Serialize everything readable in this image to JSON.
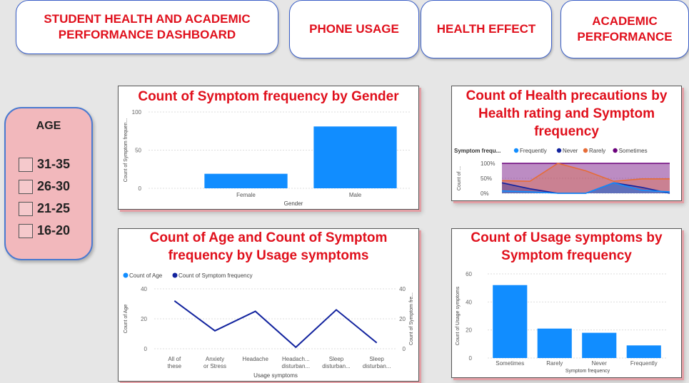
{
  "nav": {
    "title": "STUDENT HEALTH AND ACADEMIC PERFORMANCE DASHBOARD",
    "phone_usage": "PHONE USAGE",
    "health_effect": "HEALTH EFFECT",
    "academic_performance": "ACADEMIC PERFORMANCE"
  },
  "age_filter": {
    "title": "AGE",
    "options": [
      "31-35",
      "26-30",
      "21-25",
      "16-20"
    ]
  },
  "colors": {
    "accent": "#e0101c",
    "bar": "#118dff",
    "dark_blue": "#12239e",
    "orange": "#e66c37",
    "purple": "#6b007b"
  },
  "chart_data": [
    {
      "type": "bar",
      "title": "Count of Symptom frequency by Gender",
      "xlabel": "Gender",
      "ylabel": "Count of Symptom frequen...",
      "categories": [
        "Female",
        "Male"
      ],
      "values": [
        19,
        81
      ],
      "ylim": [
        0,
        100
      ],
      "yticks": [
        0,
        50,
        100
      ]
    },
    {
      "type": "area",
      "title": "Count of Health precautions by Health rating and Symptom frequency",
      "legend_title": "Symptom frequ...",
      "ylabel": "Count of ...",
      "yticks": [
        "0%",
        "50%",
        "100%"
      ],
      "legend": "top",
      "series": [
        {
          "name": "Frequently",
          "values": [
            8,
            5,
            0,
            0,
            35,
            10,
            5
          ]
        },
        {
          "name": "Never",
          "values": [
            35,
            15,
            0,
            0,
            35,
            20,
            0
          ]
        },
        {
          "name": "Rarely",
          "values": [
            42,
            40,
            100,
            75,
            40,
            48,
            48
          ]
        },
        {
          "name": "Sometimes",
          "values": [
            100,
            100,
            100,
            100,
            100,
            100,
            100
          ]
        }
      ]
    },
    {
      "type": "line",
      "title": "Count of Age and Count of Symptom frequency by Usage symptoms",
      "xlabel": "Usage symptoms",
      "ylabel": "Count of Age",
      "y2label": "Count of Symptom fre...",
      "categories": [
        "All of these",
        "Anxiety or Stress",
        "Headache",
        "Headach... disturban...",
        "Sleep disturban...",
        "Sleep disturban..."
      ],
      "series": [
        {
          "name": "Count of Age",
          "values": [
            32,
            12,
            25,
            1,
            26,
            4
          ]
        },
        {
          "name": "Count of Symptom frequency",
          "values": [
            32,
            12,
            25,
            1,
            26,
            4
          ]
        }
      ],
      "ylim": [
        0,
        40
      ],
      "yticks": [
        0,
        20,
        40
      ],
      "legend": "top-left"
    },
    {
      "type": "bar",
      "title": "Count of Usage symptoms by Symptom frequency",
      "xlabel": "Symptom frequency",
      "ylabel": "Count of Usage symptoms",
      "categories": [
        "Sometimes",
        "Rarely",
        "Never",
        "Frequently"
      ],
      "values": [
        52,
        21,
        18,
        9
      ],
      "ylim": [
        0,
        60
      ],
      "yticks": [
        0,
        20,
        40,
        60
      ]
    }
  ]
}
